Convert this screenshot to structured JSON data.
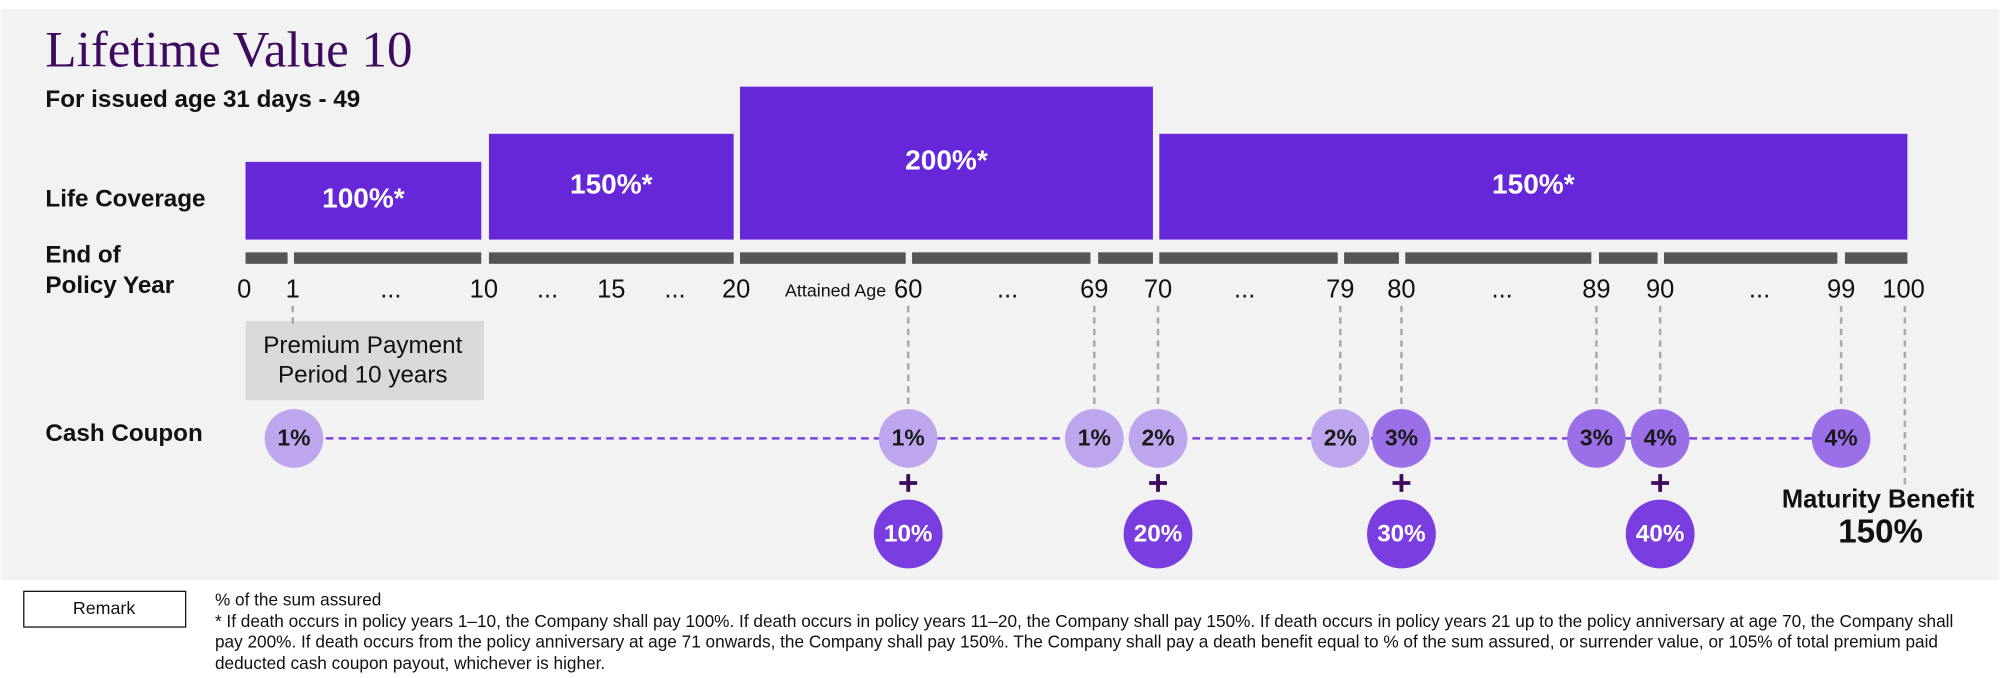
{
  "header": {
    "title": "Lifetime Value 10",
    "subtitle": "For issued age 31 days - 49"
  },
  "row_labels": {
    "life_coverage": "Life Coverage",
    "end_of_policy_year": [
      "End of",
      "Policy Year"
    ],
    "cash_coupon": "Cash Coupon"
  },
  "coverage": [
    "100%*",
    "150%*",
    "200%*",
    "150%*"
  ],
  "timeline": {
    "labels": [
      "0",
      "1",
      "...",
      "10",
      "...",
      "15",
      "...",
      "20",
      "60",
      "...",
      "69",
      "70",
      "...",
      "79",
      "80",
      "...",
      "89",
      "90",
      "...",
      "99",
      "100"
    ],
    "attained_age": "Attained Age"
  },
  "premium_period": [
    "Premium Payment",
    "Period 10 years"
  ],
  "coupons": [
    "1%",
    "1%",
    "1%",
    "2%",
    "2%",
    "3%",
    "3%",
    "4%",
    "4%"
  ],
  "bonuses": [
    "10%",
    "20%",
    "30%",
    "40%"
  ],
  "maturity": {
    "label": "Maturity Benefit",
    "value": "150%"
  },
  "remark": {
    "button": "Remark",
    "unit_note": "% of the sum assured",
    "footnote": "* If death occurs in policy years 1–10, the Company shall pay 100%. If death occurs in policy years 11–20, the Company shall pay 150%. If death occurs in policy years 21 up to the policy anniversary at age 70, the Company shall pay 200%. If death occurs from the policy anniversary at age 71 onwards, the Company shall pay 150%. The Company shall pay a death benefit equal to % of the sum assured, or surrender value, or 105% of total premium paid deducted cash coupon payout, whichever is higher."
  }
}
